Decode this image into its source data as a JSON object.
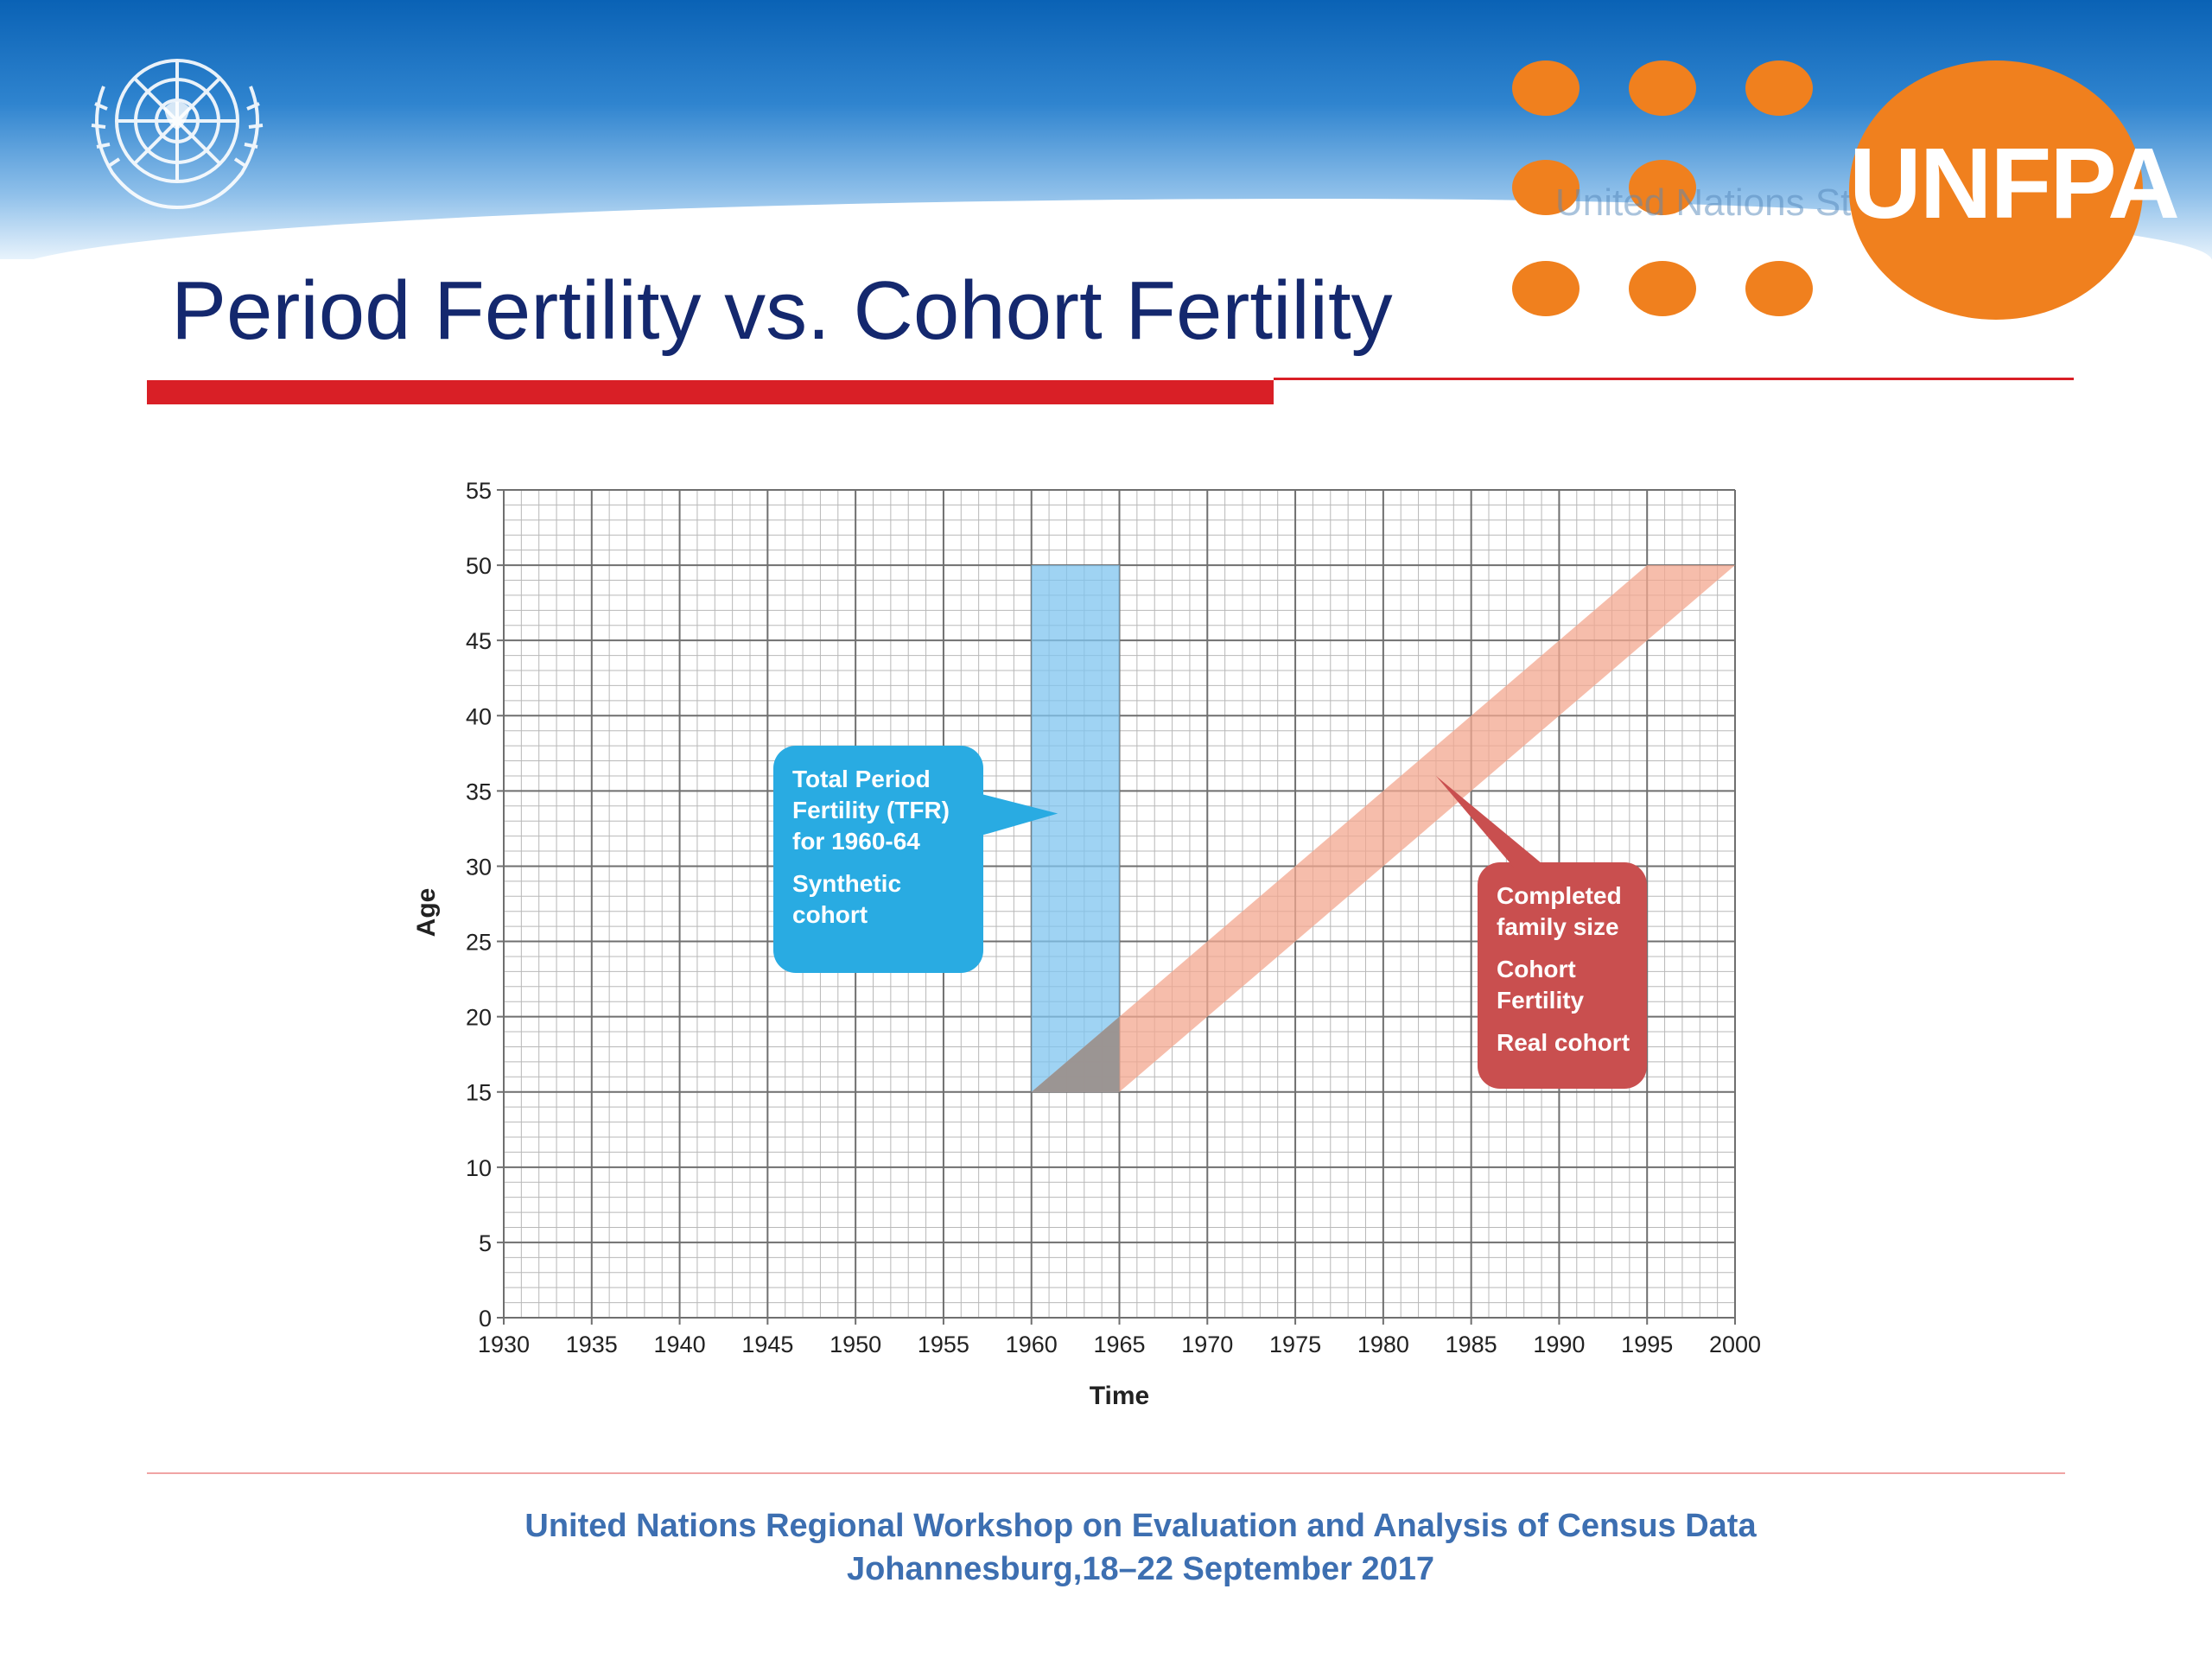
{
  "slide": {
    "title": "Period Fertility vs. Cohort Fertility",
    "faded_logo_text": "United Nations Statistics",
    "unfpa_logo_text": "UNFPA",
    "footer_line1": "United Nations Regional Workshop on Evaluation and Analysis of Census Data",
    "footer_line2": "Johannesburg,18–22 September 2017"
  },
  "colors": {
    "title": "#14286e",
    "accent_red": "#d91f26",
    "unfpa_orange": "#f0801e",
    "period_band": "#7fc4ef",
    "cohort_band": "#f3a78f",
    "overlap": "#8f8f8f",
    "callout_blue": "#29abe2",
    "callout_red": "#c94f4f",
    "footer_text": "#3d6fb1"
  },
  "chart_data": {
    "type": "area",
    "xlabel": "Time",
    "ylabel": "Age",
    "xlim": [
      1930,
      2000
    ],
    "ylim": [
      0,
      55
    ],
    "x_ticks": [
      "1930",
      "1935",
      "1940",
      "1945",
      "1950",
      "1955",
      "1960",
      "1965",
      "1970",
      "1975",
      "1980",
      "1985",
      "1990",
      "1995",
      "2000"
    ],
    "y_ticks": [
      "0",
      "5",
      "10",
      "15",
      "20",
      "25",
      "30",
      "35",
      "40",
      "45",
      "50",
      "55"
    ],
    "grid": true,
    "minor_grid_step": 1,
    "regions": [
      {
        "id": "period",
        "polygon": [
          [
            1960,
            15
          ],
          [
            1965,
            15
          ],
          [
            1965,
            50
          ],
          [
            1960,
            50
          ]
        ]
      },
      {
        "id": "cohort",
        "polygon": [
          [
            1960,
            15
          ],
          [
            1965,
            15
          ],
          [
            2000,
            50
          ],
          [
            1995,
            50
          ]
        ]
      },
      {
        "id": "overlap",
        "polygon": [
          [
            1960,
            15
          ],
          [
            1965,
            15
          ],
          [
            1965,
            20
          ]
        ]
      }
    ],
    "annotations": [
      {
        "id": "period_callout",
        "lines": [
          "Total Period",
          "Fertility (TFR)",
          "for 1960-64",
          "",
          "Synthetic",
          "cohort"
        ],
        "pointer_to": [
          1961.5,
          33.5
        ]
      },
      {
        "id": "cohort_callout",
        "lines": [
          "Completed",
          "family size",
          "",
          "Cohort",
          "Fertility",
          "",
          "Real cohort"
        ],
        "pointer_to": [
          1983,
          36
        ]
      }
    ]
  }
}
